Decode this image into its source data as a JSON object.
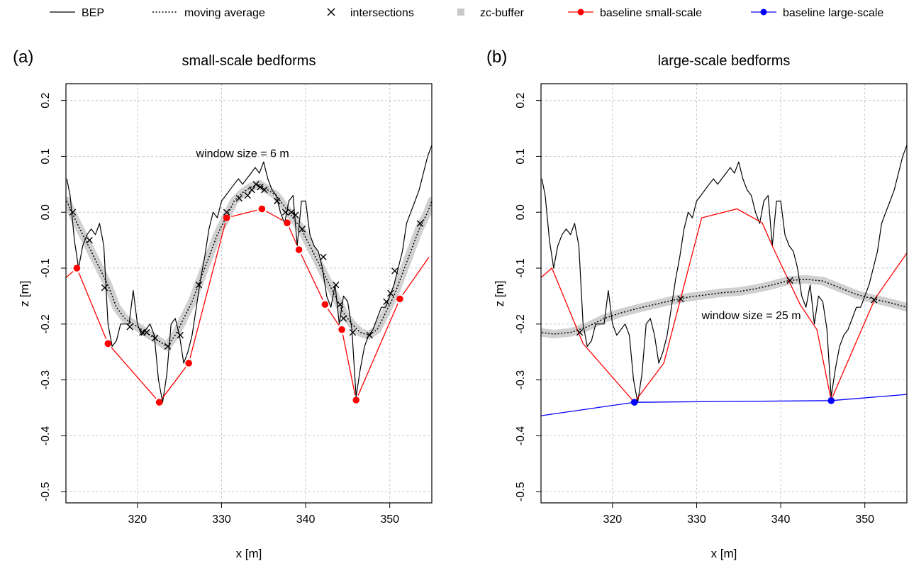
{
  "legend": {
    "items": [
      {
        "label": "BEP",
        "style": "solid-black"
      },
      {
        "label": "moving average",
        "style": "dotted-black"
      },
      {
        "label": "intersections",
        "style": "cross"
      },
      {
        "label": "zc-buffer",
        "style": "grey-square"
      },
      {
        "label": "baseline small-scale",
        "style": "red-line-dot"
      },
      {
        "label": "baseline large-scale",
        "style": "blue-line-dot"
      }
    ]
  },
  "colors": {
    "bep": "#000000",
    "buffer": "#c8c8c8",
    "small_scale": "#ff0000",
    "large_scale": "#0000ff",
    "grid": "#c8c8c8"
  },
  "chart_data": [
    {
      "type": "line",
      "panel_label": "(a)",
      "title": "small-scale bedforms",
      "xlabel": "x [m]",
      "ylabel": "z [m]",
      "xlim": [
        311.5,
        355
      ],
      "ylim": [
        -0.52,
        0.23
      ],
      "xticks": [
        320,
        330,
        340,
        350
      ],
      "yticks": [
        0.2,
        0.1,
        0.0,
        -0.1,
        -0.2,
        -0.3,
        -0.4,
        -0.5
      ],
      "grid": true,
      "annotation": {
        "text": "window size = 6 m",
        "x": 332.5,
        "y": 0.105
      },
      "bep": {
        "x": [
          311.6,
          312,
          312.5,
          313,
          313.5,
          314,
          314.5,
          315,
          315.5,
          316,
          316.5,
          317,
          317.5,
          318,
          318.5,
          319,
          319.5,
          320,
          320.5,
          321,
          321.5,
          322,
          322.5,
          323,
          323.5,
          324,
          324.5,
          325,
          325.5,
          326,
          326.5,
          327,
          327.5,
          328,
          328.5,
          329,
          329.5,
          330,
          330.5,
          331,
          331.5,
          332,
          332.5,
          333,
          333.5,
          334,
          334.5,
          335,
          335.5,
          336,
          336.5,
          337,
          337.5,
          338,
          338.5,
          339,
          339.5,
          340,
          340.5,
          341,
          341.5,
          342,
          342.5,
          343,
          343.5,
          344,
          344.5,
          345,
          345.5,
          346,
          346.5,
          347,
          347.5,
          348,
          348.5,
          349,
          349.5,
          350,
          350.5,
          351,
          351.5,
          352,
          352.5,
          353,
          353.5,
          354,
          354.5,
          355
        ],
        "y": [
          0.06,
          0.03,
          -0.05,
          -0.1,
          -0.06,
          -0.04,
          -0.03,
          -0.04,
          -0.02,
          -0.06,
          -0.2,
          -0.24,
          -0.23,
          -0.2,
          -0.2,
          -0.2,
          -0.14,
          -0.2,
          -0.22,
          -0.21,
          -0.2,
          -0.22,
          -0.3,
          -0.34,
          -0.29,
          -0.2,
          -0.19,
          -0.22,
          -0.27,
          -0.25,
          -0.22,
          -0.17,
          -0.12,
          -0.08,
          -0.03,
          0.0,
          -0.01,
          0.02,
          0.03,
          0.04,
          0.05,
          0.06,
          0.05,
          0.06,
          0.07,
          0.08,
          0.07,
          0.09,
          0.06,
          0.04,
          0.03,
          0.0,
          -0.02,
          0.02,
          0.03,
          -0.06,
          0.02,
          0.02,
          -0.04,
          -0.06,
          -0.07,
          -0.1,
          -0.15,
          -0.17,
          -0.13,
          -0.2,
          -0.15,
          -0.16,
          -0.21,
          -0.33,
          -0.28,
          -0.24,
          -0.22,
          -0.21,
          -0.19,
          -0.17,
          -0.17,
          -0.15,
          -0.13,
          -0.1,
          -0.07,
          -0.02,
          0.0,
          0.02,
          0.04,
          0.07,
          0.1,
          0.12
        ]
      },
      "moving_average": {
        "x": [
          311.6,
          312.5,
          313.5,
          314.5,
          315.5,
          316.5,
          317.5,
          318.5,
          319.5,
          320.5,
          321.5,
          322.5,
          323.5,
          324.5,
          325.5,
          326.5,
          327.5,
          328.5,
          329.5,
          330.5,
          331.5,
          332.5,
          333.5,
          334.5,
          335.5,
          336.5,
          337.5,
          338.5,
          339.5,
          340.5,
          341.5,
          342.5,
          343.5,
          344.5,
          345.5,
          346.5,
          347.5,
          348.5,
          349.5,
          350.5,
          351.5,
          352.5,
          353.5,
          354.5,
          355
        ],
        "y": [
          0.02,
          -0.01,
          -0.04,
          -0.07,
          -0.1,
          -0.13,
          -0.17,
          -0.19,
          -0.2,
          -0.21,
          -0.22,
          -0.23,
          -0.24,
          -0.22,
          -0.19,
          -0.16,
          -0.12,
          -0.08,
          -0.04,
          -0.01,
          0.02,
          0.035,
          0.045,
          0.05,
          0.04,
          0.03,
          0.01,
          -0.01,
          -0.03,
          -0.06,
          -0.09,
          -0.12,
          -0.15,
          -0.18,
          -0.2,
          -0.215,
          -0.22,
          -0.21,
          -0.18,
          -0.15,
          -0.11,
          -0.07,
          -0.03,
          0.0,
          0.02
        ]
      },
      "intersections": {
        "x": [
          312.3,
          314.3,
          316.1,
          319.1,
          320.6,
          321.1,
          322.1,
          323.6,
          325.1,
          327.3,
          330.6,
          332.1,
          333.1,
          333.6,
          334.1,
          334.6,
          335.1,
          336.6,
          337.6,
          338.3,
          338.8,
          339.6,
          342.1,
          343.6,
          344.1,
          344.5,
          345.6,
          347.6,
          349.6,
          350.1,
          350.6,
          353.6
        ],
        "y": [
          0.0,
          -0.05,
          -0.135,
          -0.205,
          -0.215,
          -0.215,
          -0.225,
          -0.24,
          -0.22,
          -0.13,
          0.0,
          0.025,
          0.03,
          0.04,
          0.05,
          0.045,
          0.04,
          0.02,
          0.0,
          0.0,
          -0.005,
          -0.03,
          -0.08,
          -0.13,
          -0.165,
          -0.19,
          -0.215,
          -0.22,
          -0.16,
          -0.145,
          -0.105,
          -0.02
        ]
      },
      "baseline_small_scale": {
        "x": [
          311.5,
          312.8,
          316.5,
          322.6,
          326.1,
          330.6,
          334.8,
          337.8,
          339.2,
          342.3,
          344.3,
          346.0,
          351.2,
          355
        ],
        "y": [
          -0.117,
          -0.1,
          -0.235,
          -0.34,
          -0.27,
          -0.01,
          0.006,
          -0.019,
          -0.067,
          -0.165,
          -0.21,
          -0.336,
          -0.155,
          -0.073
        ]
      }
    },
    {
      "type": "line",
      "panel_label": "(b)",
      "title": "large-scale bedforms",
      "xlabel": "x [m]",
      "ylabel": "z [m]",
      "xlim": [
        311.5,
        355
      ],
      "ylim": [
        -0.52,
        0.23
      ],
      "xticks": [
        320,
        330,
        340,
        350
      ],
      "yticks": [
        0.2,
        0.1,
        0.0,
        -0.1,
        -0.2,
        -0.3,
        -0.4,
        -0.5
      ],
      "grid": true,
      "annotation": {
        "text": "window size = 25 m",
        "x": 336.5,
        "y": -0.185
      },
      "moving_average": {
        "x": [
          311.6,
          313,
          315,
          317,
          319,
          321,
          323,
          325,
          327,
          329,
          331,
          333,
          335,
          337,
          339,
          341,
          343,
          345,
          347,
          349,
          351,
          353,
          355
        ],
        "y": [
          -0.215,
          -0.218,
          -0.215,
          -0.205,
          -0.19,
          -0.18,
          -0.172,
          -0.165,
          -0.158,
          -0.152,
          -0.148,
          -0.144,
          -0.142,
          -0.137,
          -0.13,
          -0.122,
          -0.12,
          -0.123,
          -0.135,
          -0.147,
          -0.155,
          -0.162,
          -0.17
        ]
      },
      "intersections": {
        "x": [
          316.1,
          328.1,
          341.1,
          351.1
        ],
        "y": [
          -0.215,
          -0.155,
          -0.122,
          -0.157
        ]
      },
      "baseline_small_scale": {
        "x": [
          311.5,
          312.8,
          316.5,
          322.6,
          326.1,
          330.6,
          334.8,
          337.8,
          339.2,
          342.3,
          344.3,
          346.0,
          351.2,
          355
        ],
        "y": [
          -0.117,
          -0.1,
          -0.235,
          -0.34,
          -0.27,
          -0.01,
          0.006,
          -0.019,
          -0.067,
          -0.165,
          -0.21,
          -0.336,
          -0.155,
          -0.073
        ]
      },
      "baseline_large_scale": {
        "x": [
          311.5,
          322.6,
          346.0,
          355
        ],
        "y": [
          -0.364,
          -0.34,
          -0.337,
          -0.326
        ]
      },
      "baseline_large_scale_points": {
        "x": [
          322.6,
          346.0
        ],
        "y": [
          -0.34,
          -0.337
        ]
      }
    }
  ]
}
